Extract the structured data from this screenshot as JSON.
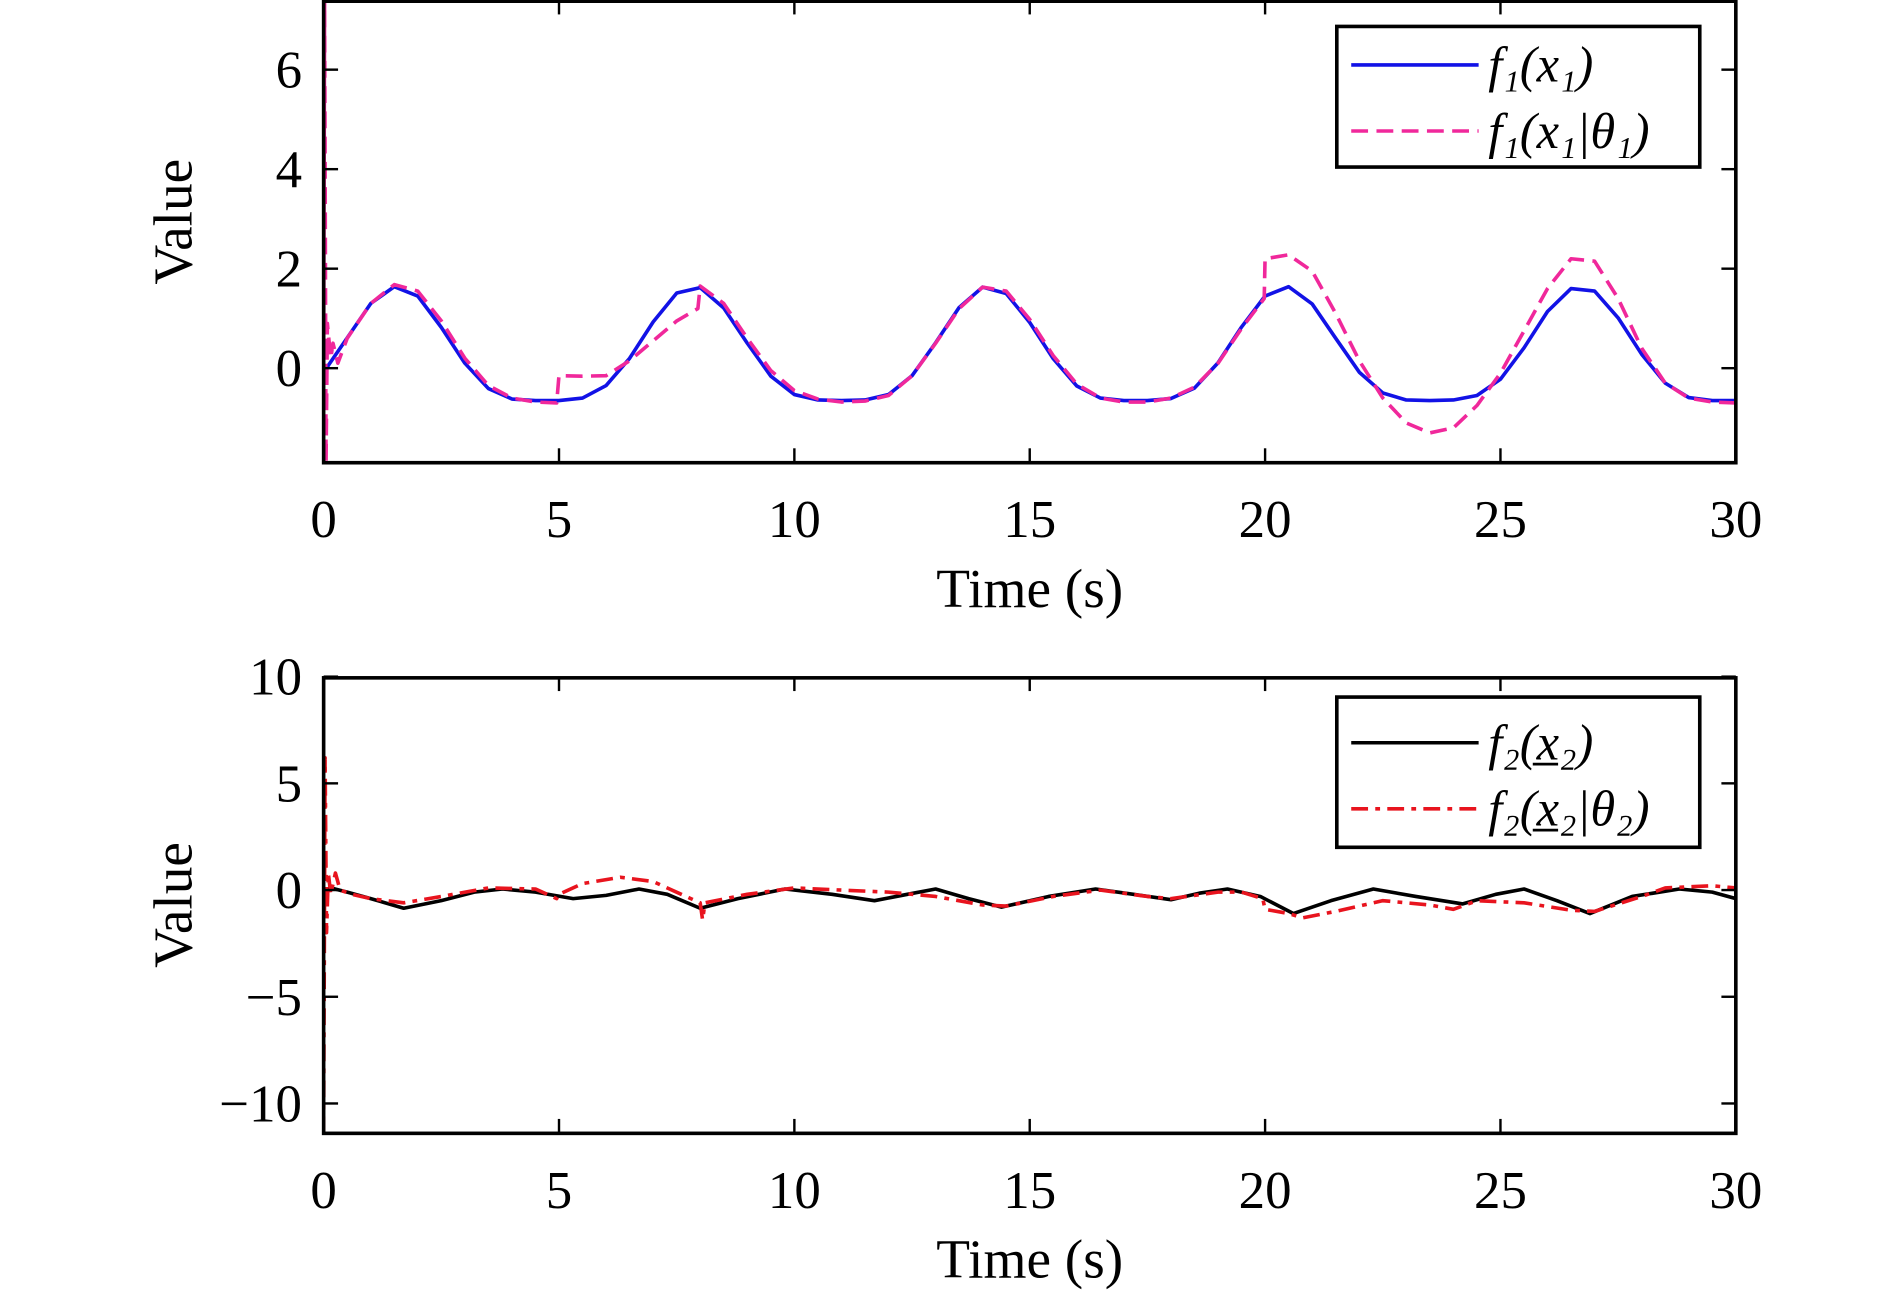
{
  "chart_data": [
    {
      "type": "line",
      "xlabel": "Time (s)",
      "ylabel": "Value",
      "xlim": [
        0,
        30
      ],
      "ylim": [
        -1.9,
        7.4
      ],
      "xticks": [
        0,
        5,
        10,
        15,
        20,
        25,
        30
      ],
      "yticks": [
        0,
        2,
        4,
        6
      ],
      "grid": false,
      "legend_position": "top-right",
      "series": [
        {
          "name": "f₁(x₁)",
          "color": "#1212E6",
          "style": "solid",
          "x": [
            0,
            0.5,
            1,
            1.5,
            2,
            2.5,
            3,
            3.5,
            4,
            4.5,
            5,
            5.5,
            6,
            6.5,
            7,
            7.5,
            8,
            8.5,
            9,
            9.5,
            10,
            10.5,
            11,
            11.5,
            12,
            12.5,
            13,
            13.5,
            14,
            14.5,
            15,
            15.5,
            16,
            16.5,
            17,
            17.5,
            18,
            18.5,
            19,
            19.5,
            20,
            20.5,
            21,
            21.5,
            22,
            22.5,
            23,
            23.5,
            24,
            24.5,
            25,
            25.5,
            26,
            26.5,
            27,
            27.5,
            28,
            28.5,
            29,
            29.5,
            30
          ],
          "y": [
            -0.08,
            0.61,
            1.3,
            1.64,
            1.45,
            0.82,
            0.1,
            -0.41,
            -0.62,
            -0.65,
            -0.65,
            -0.6,
            -0.35,
            0.2,
            0.93,
            1.51,
            1.62,
            1.21,
            0.5,
            -0.16,
            -0.53,
            -0.64,
            -0.65,
            -0.64,
            -0.53,
            -0.15,
            0.51,
            1.22,
            1.63,
            1.5,
            0.92,
            0.19,
            -0.36,
            -0.6,
            -0.65,
            -0.65,
            -0.61,
            -0.4,
            0.11,
            0.83,
            1.45,
            1.64,
            1.29,
            0.6,
            -0.08,
            -0.5,
            -0.64,
            -0.65,
            -0.64,
            -0.55,
            -0.22,
            0.41,
            1.14,
            1.6,
            1.55,
            1.01,
            0.28,
            -0.3,
            -0.59,
            -0.65,
            -0.65
          ]
        },
        {
          "name": "f₁(x₁|θ₁)",
          "color": "#F0289B",
          "style": "dashed",
          "x": [
            0,
            0.02,
            0.05,
            0.08,
            0.15,
            0.2,
            0.3,
            0.5,
            1,
            1.5,
            2,
            2.5,
            3,
            3.5,
            4,
            4.5,
            4.95,
            5.0,
            5.5,
            6,
            6.5,
            7,
            7.5,
            7.95,
            8.0,
            8.5,
            9,
            9.5,
            10,
            10.5,
            11,
            11.5,
            12,
            12.5,
            13,
            13.5,
            14,
            14.5,
            15,
            15.5,
            16,
            16.5,
            17,
            17.5,
            18,
            18.5,
            19,
            19.5,
            19.98,
            20.0,
            20.5,
            21,
            21.5,
            22,
            22.5,
            23,
            23.5,
            24,
            24.5,
            25,
            25.5,
            26,
            26.5,
            27,
            27.5,
            28,
            28.5,
            29,
            29.5,
            30
          ],
          "y": [
            0,
            7.4,
            -1.9,
            0.9,
            0.2,
            0.5,
            0.1,
            0.6,
            1.3,
            1.68,
            1.55,
            0.95,
            0.2,
            -0.35,
            -0.6,
            -0.68,
            -0.7,
            -0.15,
            -0.16,
            -0.15,
            0.15,
            0.55,
            0.95,
            1.2,
            1.65,
            1.3,
            0.6,
            -0.05,
            -0.45,
            -0.62,
            -0.68,
            -0.66,
            -0.55,
            -0.15,
            0.5,
            1.2,
            1.63,
            1.55,
            0.98,
            0.25,
            -0.32,
            -0.6,
            -0.68,
            -0.68,
            -0.6,
            -0.38,
            0.1,
            0.8,
            1.4,
            2.2,
            2.28,
            1.95,
            1.1,
            0.15,
            -0.6,
            -1.1,
            -1.3,
            -1.2,
            -0.75,
            -0.1,
            0.75,
            1.6,
            2.2,
            2.15,
            1.4,
            0.4,
            -0.3,
            -0.6,
            -0.68,
            -0.7
          ]
        }
      ]
    },
    {
      "type": "line",
      "xlabel": "Time (s)",
      "ylabel": "Value",
      "xlim": [
        0,
        30
      ],
      "ylim": [
        -11.4,
        10
      ],
      "xticks": [
        0,
        5,
        10,
        15,
        20,
        25,
        30
      ],
      "yticks": [
        -10,
        -5,
        0,
        5,
        10
      ],
      "grid": false,
      "legend_position": "top-right",
      "series": [
        {
          "name": "f₂(x̲₂)",
          "color": "#000000",
          "style": "solid",
          "x": [
            0,
            0.15,
            0.5,
            1,
            1.7,
            2.5,
            3.2,
            3.8,
            4.5,
            5.3,
            6,
            6.7,
            7.3,
            8,
            8.8,
            9.8,
            10.8,
            11.7,
            12.4,
            13,
            13.7,
            14.4,
            15.4,
            16.4,
            17.2,
            18,
            18.6,
            19.2,
            19.9,
            20.6,
            21.4,
            22.3,
            23.2,
            24.2,
            24.9,
            25.5,
            26.2,
            26.9,
            27.8,
            28.8,
            29.5,
            30
          ],
          "y": [
            0,
            0.1,
            -0.1,
            -0.4,
            -0.85,
            -0.5,
            -0.1,
            0.05,
            -0.1,
            -0.4,
            -0.25,
            0.05,
            -0.2,
            -0.85,
            -0.4,
            0.05,
            -0.2,
            -0.5,
            -0.2,
            0.05,
            -0.4,
            -0.8,
            -0.3,
            0.05,
            -0.2,
            -0.45,
            -0.15,
            0.05,
            -0.3,
            -1.1,
            -0.5,
            0.05,
            -0.3,
            -0.65,
            -0.2,
            0.05,
            -0.5,
            -1.1,
            -0.3,
            0.05,
            -0.1,
            -0.4
          ]
        },
        {
          "name": "f₂(x̲₂|θ₂)",
          "color": "#E8141E",
          "style": "dash-dot",
          "x": [
            0,
            0.03,
            0.06,
            0.1,
            0.15,
            0.25,
            0.35,
            0.6,
            1,
            1.7,
            2.5,
            3.5,
            4.5,
            4.95,
            5.0,
            5.5,
            6.3,
            7,
            7.8,
            8.0,
            8.05,
            8.1,
            9,
            10,
            11,
            12,
            13,
            14,
            14.5,
            15.5,
            16.5,
            17.5,
            18,
            19,
            19.5,
            19.95,
            20.0,
            20.5,
            20.8,
            21.5,
            22.5,
            23.5,
            24,
            24.5,
            25.5,
            26.5,
            27,
            28,
            28.5,
            29.5,
            30
          ],
          "y": [
            -11.4,
            6.2,
            -2,
            0.8,
            -0.2,
            0.8,
            0,
            -0.2,
            -0.4,
            -0.6,
            -0.3,
            0.1,
            0.05,
            -0.4,
            -0.2,
            0.3,
            0.6,
            0.4,
            -0.4,
            -0.6,
            -1.4,
            -0.6,
            -0.2,
            0.1,
            0,
            -0.1,
            -0.3,
            -0.7,
            -0.75,
            -0.3,
            0,
            -0.3,
            -0.4,
            -0.1,
            -0.1,
            -0.4,
            -0.9,
            -1.1,
            -1.3,
            -1.0,
            -0.5,
            -0.7,
            -0.9,
            -0.5,
            -0.6,
            -0.95,
            -1.0,
            -0.3,
            0.1,
            0.2,
            0.1
          ]
        }
      ]
    }
  ]
}
